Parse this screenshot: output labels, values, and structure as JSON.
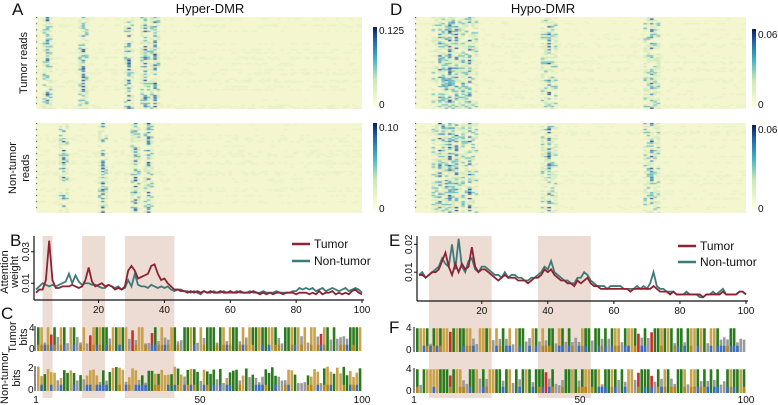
{
  "panels": {
    "A": "A",
    "B": "B",
    "C": "C",
    "D": "D",
    "E": "E",
    "F": "F"
  },
  "hyper": {
    "title": "Hyper-DMR",
    "tumor_label": "Tumor reads",
    "nontumor_label_1": "Non-tumor",
    "nontumor_label_2": "reads",
    "tumor_cbar_max": "0.125",
    "tumor_cbar_min": "0",
    "nontumor_cbar_max": "0.10",
    "nontumor_cbar_min": "0",
    "tumor_hot_positions": [
      4,
      15,
      29,
      34,
      37
    ],
    "nontumor_hot_positions": [
      9,
      21,
      31,
      35
    ]
  },
  "hypo": {
    "title": "Hypo-DMR",
    "tumor_cbar_max": "0.06",
    "tumor_cbar_min": "0",
    "nontumor_cbar_max": "0.06",
    "nontumor_cbar_min": "0",
    "tumor_hot_positions": [
      8,
      11,
      13,
      17,
      41,
      72
    ],
    "nontumor_hot_positions": [
      8,
      11,
      13,
      17,
      41,
      72
    ]
  },
  "colors": {
    "tumor": "#8b2332",
    "nontumor": "#3e7a78",
    "shade": "#ecdcd3",
    "A": "#2a7a1e",
    "C": "#3b6fc4",
    "G": "#b8861c",
    "T": "#c9a24a",
    "M": "#d42a2a"
  },
  "chart_data": [
    {
      "type": "line",
      "panel": "B",
      "ylabel_1": "Attention",
      "ylabel_2": "weight",
      "yticks": [
        "0.01",
        "0.03"
      ],
      "ytick_values": [
        0.01,
        0.03
      ],
      "xticks": [
        "20",
        "40",
        "60",
        "80",
        "100"
      ],
      "xtick_values": [
        20,
        40,
        60,
        80,
        100
      ],
      "xlim": [
        1,
        100
      ],
      "ylim": [
        0,
        0.04
      ],
      "highlight_ranges": [
        [
          3,
          6
        ],
        [
          15,
          22
        ],
        [
          28,
          43
        ]
      ],
      "legend": [
        "Tumor",
        "Non-tumor"
      ],
      "legend_position": "top-right",
      "series": [
        {
          "name": "Tumor",
          "values": [
            0.004,
            0.006,
            0.006,
            0.012,
            0.037,
            0.012,
            0.007,
            0.007,
            0.008,
            0.008,
            0.008,
            0.009,
            0.008,
            0.007,
            0.008,
            0.012,
            0.02,
            0.011,
            0.008,
            0.009,
            0.01,
            0.008,
            0.009,
            0.008,
            0.006,
            0.007,
            0.006,
            0.008,
            0.018,
            0.021,
            0.018,
            0.013,
            0.014,
            0.015,
            0.016,
            0.021,
            0.022,
            0.016,
            0.012,
            0.013,
            0.01,
            0.008,
            0.006,
            0.006,
            0.005,
            0.005,
            0.004,
            0.005,
            0.004,
            0.005,
            0.004,
            0.005,
            0.004,
            0.005,
            0.004,
            0.004,
            0.005,
            0.004,
            0.004,
            0.005,
            0.004,
            0.004,
            0.005,
            0.004,
            0.004,
            0.004,
            0.005,
            0.004,
            0.003,
            0.004,
            0.003,
            0.004,
            0.003,
            0.004,
            0.004,
            0.003,
            0.004,
            0.004,
            0.004,
            0.003,
            0.004,
            0.004,
            0.004,
            0.003,
            0.004,
            0.003,
            0.005,
            0.003,
            0.004,
            0.004,
            0.005,
            0.003,
            0.004,
            0.003,
            0.004,
            0.003,
            0.005,
            0.006,
            0.004,
            0.003
          ]
        },
        {
          "name": "Non-tumor",
          "values": [
            0.006,
            0.008,
            0.01,
            0.009,
            0.008,
            0.009,
            0.008,
            0.009,
            0.01,
            0.011,
            0.016,
            0.01,
            0.015,
            0.011,
            0.009,
            0.01,
            0.01,
            0.009,
            0.009,
            0.008,
            0.007,
            0.007,
            0.009,
            0.008,
            0.007,
            0.008,
            0.006,
            0.007,
            0.012,
            0.008,
            0.016,
            0.009,
            0.008,
            0.008,
            0.007,
            0.009,
            0.008,
            0.007,
            0.008,
            0.007,
            0.008,
            0.006,
            0.005,
            0.006,
            0.006,
            0.005,
            0.005,
            0.004,
            0.005,
            0.004,
            0.003,
            0.005,
            0.004,
            0.004,
            0.005,
            0.004,
            0.004,
            0.005,
            0.004,
            0.004,
            0.004,
            0.005,
            0.004,
            0.004,
            0.004,
            0.005,
            0.004,
            0.004,
            0.004,
            0.005,
            0.004,
            0.004,
            0.004,
            0.005,
            0.004,
            0.004,
            0.004,
            0.004,
            0.005,
            0.005,
            0.007,
            0.006,
            0.007,
            0.006,
            0.007,
            0.005,
            0.006,
            0.007,
            0.005,
            0.006,
            0.007,
            0.006,
            0.005,
            0.006,
            0.007,
            0.005,
            0.006,
            0.007,
            0.006,
            0.004
          ]
        }
      ]
    },
    {
      "type": "line",
      "panel": "E",
      "yticks": [
        "0.01",
        "0.02"
      ],
      "ytick_values": [
        0.01,
        0.02
      ],
      "xticks": [
        "20",
        "40",
        "60",
        "80",
        "100"
      ],
      "xtick_values": [
        20,
        40,
        60,
        80,
        100
      ],
      "xlim": [
        1,
        100
      ],
      "ylim": [
        0,
        0.023
      ],
      "highlight_ranges": [
        [
          4,
          23
        ],
        [
          37,
          53
        ]
      ],
      "legend": [
        "Tumor",
        "Non-tumor"
      ],
      "legend_position": "top-right",
      "series": [
        {
          "name": "Tumor",
          "values": [
            0.009,
            0.009,
            0.008,
            0.009,
            0.01,
            0.01,
            0.011,
            0.014,
            0.017,
            0.012,
            0.009,
            0.013,
            0.01,
            0.013,
            0.011,
            0.012,
            0.019,
            0.012,
            0.01,
            0.011,
            0.011,
            0.01,
            0.009,
            0.008,
            0.007,
            0.008,
            0.009,
            0.008,
            0.008,
            0.008,
            0.007,
            0.007,
            0.007,
            0.006,
            0.007,
            0.008,
            0.008,
            0.009,
            0.011,
            0.01,
            0.011,
            0.009,
            0.008,
            0.007,
            0.007,
            0.006,
            0.006,
            0.005,
            0.007,
            0.006,
            0.007,
            0.008,
            0.006,
            0.005,
            0.005,
            0.004,
            0.004,
            0.004,
            0.004,
            0.004,
            0.004,
            0.004,
            0.004,
            0.004,
            0.003,
            0.004,
            0.004,
            0.004,
            0.004,
            0.004,
            0.004,
            0.005,
            0.004,
            0.003,
            0.003,
            0.003,
            0.002,
            0.003,
            0.002,
            0.002,
            0.002,
            0.002,
            0.002,
            0.002,
            0.002,
            0.002,
            0.001,
            0.002,
            0.002,
            0.002,
            0.002,
            0.002,
            0.003,
            0.002,
            0.002,
            0.002,
            0.002,
            0.003,
            0.003,
            0.002
          ]
        },
        {
          "name": "Non-tumor",
          "values": [
            0.009,
            0.01,
            0.008,
            0.009,
            0.01,
            0.011,
            0.012,
            0.015,
            0.013,
            0.012,
            0.02,
            0.011,
            0.022,
            0.012,
            0.01,
            0.014,
            0.015,
            0.011,
            0.01,
            0.012,
            0.012,
            0.011,
            0.01,
            0.009,
            0.009,
            0.008,
            0.01,
            0.008,
            0.009,
            0.009,
            0.008,
            0.008,
            0.007,
            0.007,
            0.008,
            0.008,
            0.009,
            0.01,
            0.012,
            0.011,
            0.014,
            0.01,
            0.009,
            0.008,
            0.007,
            0.007,
            0.006,
            0.006,
            0.008,
            0.008,
            0.01,
            0.009,
            0.007,
            0.006,
            0.005,
            0.005,
            0.005,
            0.004,
            0.005,
            0.005,
            0.005,
            0.005,
            0.004,
            0.004,
            0.004,
            0.004,
            0.005,
            0.004,
            0.005,
            0.004,
            0.006,
            0.01,
            0.005,
            0.004,
            0.004,
            0.003,
            0.003,
            0.003,
            0.002,
            0.002,
            0.002,
            0.003,
            0.002,
            0.002,
            0.002,
            0.001,
            0.001,
            0.002,
            0.002,
            0.003,
            0.002,
            0.003,
            0.004,
            0.002,
            0.002,
            0.002,
            0.002,
            0.003,
            0.003,
            0.002
          ]
        }
      ]
    }
  ],
  "logo_C": {
    "tumor_label_1": "Tumor",
    "tumor_label_2": "bits",
    "nontumor_label_1": "Non-tumor",
    "nontumor_label_2": "bits",
    "tumor_ymax": "4",
    "tumor_ymin": "0",
    "nontumor_ymax": "2",
    "nontumor_ymin": "0",
    "xticks": [
      "1",
      "50",
      "100"
    ]
  },
  "logo_F": {
    "tumor_ymax": "4",
    "tumor_ymin": "0",
    "nontumor_ymax": "4",
    "nontumor_ymin": "0",
    "xticks": [
      "1",
      "50",
      "100"
    ]
  }
}
